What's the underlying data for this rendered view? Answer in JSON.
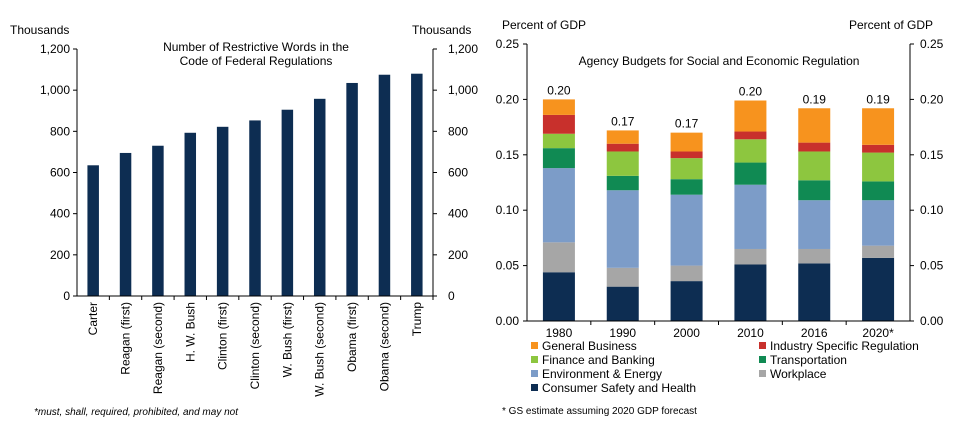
{
  "chart_data": [
    {
      "type": "bar",
      "title": "Number of Restrictive Words in the Code of Federal Regulations",
      "title_lines": [
        "Number of Restrictive Words in the",
        "Code of Federal Regulations"
      ],
      "ylabel_left": "Thousands",
      "ylabel_right": "Thousands",
      "ylim": [
        0,
        1200
      ],
      "yticks": [
        "0",
        "200",
        "400",
        "600",
        "800",
        "1,000",
        "1,200"
      ],
      "ytick_values": [
        0,
        200,
        400,
        600,
        800,
        1000,
        1200
      ],
      "categories": [
        "Carter",
        "Reagan (first)",
        "Reagan (second)",
        "H. W. Bush",
        "Clinton (first)",
        "Clinton (second)",
        "W. Bush (first)",
        "W. Bush (second)",
        "Obama (first)",
        "Obama (second)",
        "Trump"
      ],
      "values": [
        635,
        695,
        730,
        793,
        822,
        853,
        905,
        958,
        1035,
        1075,
        1080
      ],
      "color": "#0d2d52",
      "footnote": "*must, shall, required, prohibited, and may not"
    },
    {
      "type": "bar",
      "stacked": true,
      "title": "Agency Budgets for Social and Economic Regulation",
      "ylabel_left": "Percent of GDP",
      "ylabel_right": "Percent of GDP",
      "ylim": [
        0,
        0.25
      ],
      "yticks": [
        "0.00",
        "0.05",
        "0.10",
        "0.15",
        "0.20",
        "0.25"
      ],
      "ytick_values": [
        0,
        0.05,
        0.1,
        0.15,
        0.2,
        0.25
      ],
      "categories": [
        "1980",
        "1990",
        "2000",
        "2010",
        "2016",
        "2020*"
      ],
      "totals": [
        "0.20",
        "0.17",
        "0.17",
        "0.20",
        "0.19",
        "0.19"
      ],
      "series": [
        {
          "name": "Consumer Safety and Health",
          "color": "#0d2d52",
          "values": [
            0.044,
            0.031,
            0.036,
            0.051,
            0.052,
            0.057
          ]
        },
        {
          "name": "Workplace",
          "color": "#a6a6a6",
          "values": [
            0.027,
            0.017,
            0.014,
            0.014,
            0.013,
            0.011
          ]
        },
        {
          "name": "Environment & Energy",
          "color": "#7c9cc8",
          "values": [
            0.067,
            0.07,
            0.064,
            0.058,
            0.044,
            0.041
          ]
        },
        {
          "name": "Transportation",
          "color": "#108a53",
          "values": [
            0.018,
            0.013,
            0.014,
            0.02,
            0.018,
            0.017
          ]
        },
        {
          "name": "Finance and Banking",
          "color": "#8dc63f",
          "values": [
            0.013,
            0.022,
            0.019,
            0.021,
            0.026,
            0.026
          ]
        },
        {
          "name": "Industry Specific Regulation",
          "color": "#c8302c",
          "values": [
            0.017,
            0.007,
            0.006,
            0.007,
            0.008,
            0.007
          ]
        },
        {
          "name": "General Business",
          "color": "#f7931e",
          "values": [
            0.014,
            0.012,
            0.017,
            0.028,
            0.031,
            0.033
          ]
        }
      ],
      "legend_order": [
        "General Business",
        "Industry Specific Regulation",
        "Finance and Banking",
        "Transportation",
        "Environment & Energy",
        "Workplace",
        "Consumer Safety and Health"
      ],
      "footnote": "* GS estimate assuming 2020 GDP forecast"
    }
  ]
}
